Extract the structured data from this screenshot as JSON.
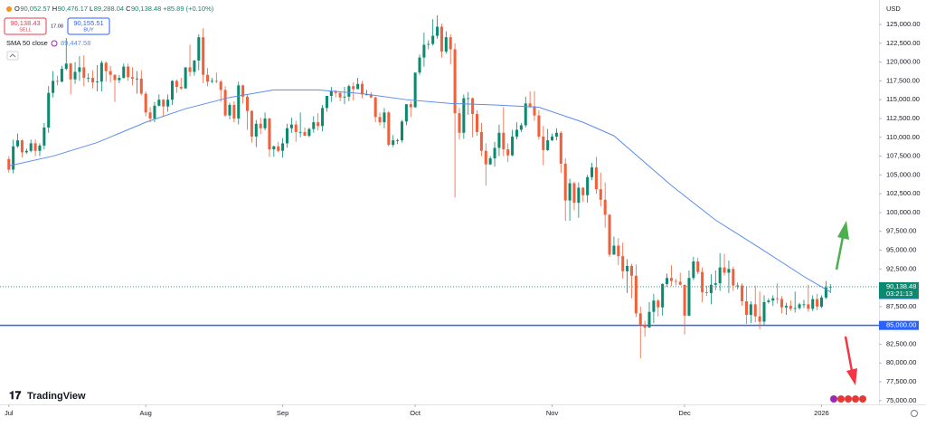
{
  "chart_data": {
    "type": "candlestick",
    "currency": "USD",
    "header": {
      "items": [
        {
          "key": "O",
          "value": "90,052.57"
        },
        {
          "key": "H",
          "value": "90,476.17"
        },
        {
          "key": "L",
          "value": "89,288.04"
        },
        {
          "key": "C",
          "value": "90,138.48"
        }
      ],
      "change": "+85.89 (+0.10%)"
    },
    "trade": {
      "sell_price": "90,138.43",
      "sell": "SELL",
      "spread": "17.08",
      "buy_price": "90,155.51",
      "buy": "BUY"
    },
    "countdown": "03:21:13",
    "brand": "TradingView",
    "up_color": "#0b8a70",
    "down_color": "#f0603a",
    "ylim": [
      74500,
      128250
    ],
    "xlim": [
      -2,
      197
    ],
    "xticks": [
      {
        "value": 0,
        "label": "Jul"
      },
      {
        "value": 31,
        "label": "Aug"
      },
      {
        "value": 62,
        "label": "Sep"
      },
      {
        "value": 92,
        "label": "Oct"
      },
      {
        "value": 123,
        "label": "Nov"
      },
      {
        "value": 153,
        "label": "Dec"
      },
      {
        "value": 184,
        "label": "2026"
      }
    ],
    "yticks": [
      {
        "value": 75000,
        "label": "75,000.00"
      },
      {
        "value": 77500,
        "label": "77,500.00"
      },
      {
        "value": 80000,
        "label": "80,000.00"
      },
      {
        "value": 82500,
        "label": "82,500.00"
      },
      {
        "value": 85000,
        "label": "85,000.00"
      },
      {
        "value": 87500,
        "label": "87,500.00"
      },
      {
        "value": 90000,
        "label": "90,000.00"
      },
      {
        "value": 92500,
        "label": "92,500.00"
      },
      {
        "value": 95000,
        "label": "95,000.00"
      },
      {
        "value": 97500,
        "label": "97,500.00"
      },
      {
        "value": 100000,
        "label": "100,000.00"
      },
      {
        "value": 102500,
        "label": "102,500.00"
      },
      {
        "value": 105000,
        "label": "105,000.00"
      },
      {
        "value": 107500,
        "label": "107,500.00"
      },
      {
        "value": 110000,
        "label": "110,000.00"
      },
      {
        "value": 112500,
        "label": "112,500.00"
      },
      {
        "value": 115000,
        "label": "115,000.00"
      },
      {
        "value": 117500,
        "label": "117,500.00"
      },
      {
        "value": 120000,
        "label": "120,000.00"
      },
      {
        "value": 122500,
        "label": "122,500.00"
      },
      {
        "value": 125000,
        "label": "125,000.00"
      }
    ],
    "hline": {
      "value": 85000,
      "label": "85,000.00",
      "color": "#2962ff"
    },
    "last_price": {
      "value": 90138.48,
      "label": "90,138.48",
      "color": "#0b8a70"
    },
    "sma": {
      "name": "SMA 50 close",
      "color": "#5b8def",
      "value_label": "89,447.58",
      "x": [
        0,
        10,
        20,
        31,
        40,
        50,
        60,
        70,
        80,
        90,
        100,
        110,
        120,
        130,
        137,
        150,
        160,
        170,
        180,
        186
      ],
      "values": [
        106200,
        107500,
        109300,
        112000,
        113800,
        115300,
        116300,
        116300,
        115800,
        115000,
        114500,
        114300,
        114000,
        112000,
        110200,
        103600,
        99000,
        95300,
        91500,
        89447.58
      ]
    },
    "ohlc": [
      [
        107100,
        107500,
        105300,
        105700
      ],
      [
        105700,
        109700,
        105200,
        108800
      ],
      [
        108800,
        110500,
        108600,
        109600
      ],
      [
        109600,
        109700,
        107300,
        108000
      ],
      [
        108000,
        108500,
        107800,
        108200
      ],
      [
        108200,
        109700,
        108000,
        109200
      ],
      [
        109200,
        109700,
        107500,
        108200
      ],
      [
        108200,
        109200,
        107500,
        108900
      ],
      [
        108900,
        111900,
        108400,
        111300
      ],
      [
        111300,
        116800,
        110600,
        115900
      ],
      [
        115900,
        118800,
        115300,
        117500
      ],
      [
        117500,
        118200,
        116900,
        117400
      ],
      [
        117400,
        119500,
        117300,
        119100
      ],
      [
        119100,
        123200,
        118900,
        119800
      ],
      [
        119800,
        119900,
        115700,
        117700
      ],
      [
        117700,
        120000,
        117100,
        118700
      ],
      [
        118700,
        120800,
        117500,
        119300
      ],
      [
        119300,
        120900,
        116800,
        117900
      ],
      [
        117900,
        118500,
        117300,
        117900
      ],
      [
        117900,
        118900,
        116500,
        117300
      ],
      [
        117300,
        119600,
        116100,
        117400
      ],
      [
        117400,
        120200,
        116100,
        119900
      ],
      [
        119900,
        120100,
        117400,
        118800
      ],
      [
        118800,
        119500,
        117300,
        118300
      ],
      [
        118300,
        118400,
        114700,
        117600
      ],
      [
        117600,
        118300,
        117200,
        117900
      ],
      [
        117900,
        119800,
        117800,
        119400
      ],
      [
        119400,
        119800,
        117500,
        118000
      ],
      [
        118000,
        119300,
        116900,
        117800
      ],
      [
        117800,
        118800,
        115800,
        117800
      ],
      [
        117800,
        118900,
        115600,
        115800
      ],
      [
        115800,
        116100,
        112800,
        113300
      ],
      [
        113300,
        114000,
        112000,
        112500
      ],
      [
        112500,
        114700,
        112000,
        114200
      ],
      [
        114200,
        115700,
        114100,
        115000
      ],
      [
        115000,
        115100,
        112700,
        114100
      ],
      [
        114100,
        115700,
        113400,
        115000
      ],
      [
        115000,
        117600,
        114300,
        117500
      ],
      [
        117500,
        117700,
        115900,
        116700
      ],
      [
        116700,
        117900,
        116300,
        116500
      ],
      [
        116500,
        119300,
        116500,
        119300
      ],
      [
        119300,
        122300,
        118100,
        118700
      ],
      [
        118700,
        120300,
        118200,
        120200
      ],
      [
        120200,
        123700,
        118900,
        123300
      ],
      [
        123300,
        124500,
        117200,
        118300
      ],
      [
        118300,
        119200,
        116800,
        117400
      ],
      [
        117400,
        117900,
        117200,
        117500
      ],
      [
        117500,
        118600,
        117200,
        117400
      ],
      [
        117400,
        117600,
        114700,
        116300
      ],
      [
        116300,
        116800,
        112700,
        112900
      ],
      [
        112900,
        114600,
        112400,
        114300
      ],
      [
        114300,
        114800,
        112000,
        112500
      ],
      [
        112500,
        117400,
        111700,
        116900
      ],
      [
        116900,
        117000,
        114500,
        115400
      ],
      [
        115400,
        115700,
        111000,
        113500
      ],
      [
        113500,
        113600,
        109300,
        110100
      ],
      [
        110100,
        112300,
        108700,
        111800
      ],
      [
        111800,
        112600,
        110400,
        111200
      ],
      [
        111200,
        113300,
        110900,
        112500
      ],
      [
        112500,
        112600,
        107400,
        108400
      ],
      [
        108400,
        108900,
        107400,
        108800
      ],
      [
        108800,
        109400,
        108000,
        108200
      ],
      [
        108200,
        109900,
        107300,
        109200
      ],
      [
        109200,
        111800,
        108600,
        111200
      ],
      [
        111200,
        112600,
        110600,
        111700
      ],
      [
        111700,
        112200,
        109400,
        110700
      ],
      [
        110700,
        113300,
        110000,
        110700
      ],
      [
        110700,
        111300,
        110200,
        110200
      ],
      [
        110200,
        111300,
        110000,
        111100
      ],
      [
        111100,
        112800,
        110600,
        112000
      ],
      [
        112000,
        113200,
        110900,
        111500
      ],
      [
        111500,
        114300,
        110800,
        113900
      ],
      [
        113900,
        115500,
        113400,
        115500
      ],
      [
        115500,
        116700,
        114700,
        116100
      ],
      [
        116100,
        116300,
        115300,
        115900
      ],
      [
        115900,
        116100,
        114800,
        115300
      ],
      [
        115300,
        116700,
        114400,
        115400
      ],
      [
        115400,
        117000,
        114800,
        116800
      ],
      [
        116800,
        117300,
        114900,
        116400
      ],
      [
        116400,
        117900,
        116400,
        117100
      ],
      [
        117100,
        117500,
        115200,
        115700
      ],
      [
        115700,
        116300,
        115600,
        115700
      ],
      [
        115700,
        116000,
        115200,
        115300
      ],
      [
        115300,
        115400,
        112000,
        112700
      ],
      [
        112700,
        113300,
        111600,
        112000
      ],
      [
        112000,
        113900,
        111200,
        113300
      ],
      [
        113300,
        113500,
        108800,
        109000
      ],
      [
        109000,
        110300,
        108700,
        109600
      ],
      [
        109600,
        109800,
        109100,
        109600
      ],
      [
        109600,
        112300,
        109300,
        112100
      ],
      [
        112100,
        114400,
        111600,
        114400
      ],
      [
        114400,
        114800,
        112700,
        114000
      ],
      [
        114000,
        118600,
        113900,
        118600
      ],
      [
        118600,
        121000,
        118300,
        120600
      ],
      [
        120600,
        123900,
        119400,
        122300
      ],
      [
        122300,
        122900,
        121700,
        122400
      ],
      [
        122400,
        125700,
        122200,
        123500
      ],
      [
        123500,
        126200,
        123100,
        124700
      ],
      [
        124700,
        125100,
        120600,
        121400
      ],
      [
        121400,
        124100,
        121100,
        123300
      ],
      [
        123300,
        123700,
        119700,
        121700
      ],
      [
        121700,
        122500,
        102000,
        113200
      ],
      [
        113200,
        113900,
        109700,
        110600
      ],
      [
        110600,
        115700,
        109800,
        115200
      ],
      [
        115200,
        116000,
        113000,
        115200
      ],
      [
        115200,
        115300,
        110000,
        113100
      ],
      [
        113100,
        113600,
        110200,
        110700
      ],
      [
        110700,
        111900,
        107500,
        108200
      ],
      [
        108200,
        109200,
        103600,
        106400
      ],
      [
        106400,
        107500,
        106300,
        107200
      ],
      [
        107200,
        109400,
        106100,
        108600
      ],
      [
        108600,
        111700,
        107500,
        110600
      ],
      [
        110600,
        114000,
        107500,
        108400
      ],
      [
        108400,
        109200,
        106700,
        107600
      ],
      [
        107600,
        111000,
        107500,
        110100
      ],
      [
        110100,
        112000,
        109700,
        111000
      ],
      [
        111000,
        111900,
        110700,
        111600
      ],
      [
        111600,
        115400,
        111300,
        114500
      ],
      [
        114500,
        116100,
        113900,
        114100
      ],
      [
        114100,
        116100,
        112200,
        112900
      ],
      [
        112900,
        113600,
        109700,
        110100
      ],
      [
        110100,
        111500,
        106300,
        108300
      ],
      [
        108300,
        111100,
        108200,
        109600
      ],
      [
        109600,
        110500,
        109500,
        110100
      ],
      [
        110100,
        111200,
        109600,
        110600
      ],
      [
        110600,
        110800,
        105300,
        106500
      ],
      [
        106500,
        107200,
        98900,
        101600
      ],
      [
        101600,
        104500,
        98900,
        103900
      ],
      [
        103900,
        104100,
        100300,
        101300
      ],
      [
        101300,
        104000,
        99300,
        103300
      ],
      [
        103300,
        103400,
        101400,
        102300
      ],
      [
        102300,
        105000,
        101300,
        104700
      ],
      [
        104700,
        106600,
        104300,
        106000
      ],
      [
        106000,
        107400,
        102500,
        103100
      ],
      [
        103100,
        105300,
        100800,
        101700
      ],
      [
        101700,
        104000,
        98000,
        99700
      ],
      [
        99700,
        99800,
        94100,
        94400
      ],
      [
        94400,
        96800,
        94400,
        95600
      ],
      [
        95600,
        96600,
        93000,
        94200
      ],
      [
        94200,
        96000,
        91200,
        92200
      ],
      [
        92200,
        93800,
        89300,
        92900
      ],
      [
        92900,
        93200,
        88600,
        91600
      ],
      [
        91600,
        93100,
        86100,
        86600
      ],
      [
        86600,
        87500,
        80600,
        85100
      ],
      [
        85100,
        85600,
        83500,
        84700
      ],
      [
        84700,
        88100,
        84700,
        86800
      ],
      [
        86800,
        89200,
        85300,
        88300
      ],
      [
        88300,
        88500,
        86200,
        87400
      ],
      [
        87400,
        90600,
        86300,
        90500
      ],
      [
        90500,
        91900,
        90100,
        91300
      ],
      [
        91300,
        93000,
        90200,
        90900
      ],
      [
        90900,
        91200,
        90300,
        90800
      ],
      [
        90800,
        92000,
        90300,
        90400
      ],
      [
        90400,
        90400,
        83800,
        86300
      ],
      [
        86300,
        92300,
        86200,
        91300
      ],
      [
        91300,
        94100,
        91000,
        93500
      ],
      [
        93500,
        94000,
        91800,
        92100
      ],
      [
        92100,
        92700,
        88100,
        89400
      ],
      [
        89400,
        90300,
        88900,
        89300
      ],
      [
        89300,
        91800,
        87800,
        90400
      ],
      [
        90400,
        92300,
        89700,
        90600
      ],
      [
        90600,
        94600,
        89600,
        92700
      ],
      [
        92700,
        94500,
        91600,
        92000
      ],
      [
        92000,
        93600,
        89300,
        92500
      ],
      [
        92500,
        92800,
        89600,
        90300
      ],
      [
        90300,
        90700,
        89800,
        90300
      ],
      [
        90300,
        90600,
        87600,
        88200
      ],
      [
        88200,
        90100,
        85200,
        86400
      ],
      [
        86400,
        88200,
        85300,
        87800
      ],
      [
        87800,
        90300,
        85400,
        86200
      ],
      [
        86200,
        89500,
        84500,
        85500
      ],
      [
        85500,
        89000,
        85100,
        88100
      ],
      [
        88100,
        88600,
        87900,
        88300
      ],
      [
        88300,
        89000,
        87600,
        88600
      ],
      [
        88600,
        90600,
        87900,
        88500
      ],
      [
        88500,
        88900,
        86600,
        87400
      ],
      [
        87400,
        88000,
        86400,
        87600
      ],
      [
        87600,
        88300,
        86900,
        87200
      ],
      [
        87200,
        89500,
        86700,
        87300
      ],
      [
        87300,
        88000,
        87100,
        87800
      ],
      [
        87800,
        88400,
        87300,
        87800
      ],
      [
        87800,
        90400,
        86800,
        87200
      ],
      [
        87200,
        89000,
        86900,
        88500
      ],
      [
        88500,
        89200,
        87000,
        87500
      ],
      [
        87500,
        89000,
        87300,
        88700
      ],
      [
        88700,
        90900,
        88500,
        90052.57
      ],
      [
        90052.57,
        90476.17,
        89288.04,
        90138.48
      ]
    ]
  }
}
